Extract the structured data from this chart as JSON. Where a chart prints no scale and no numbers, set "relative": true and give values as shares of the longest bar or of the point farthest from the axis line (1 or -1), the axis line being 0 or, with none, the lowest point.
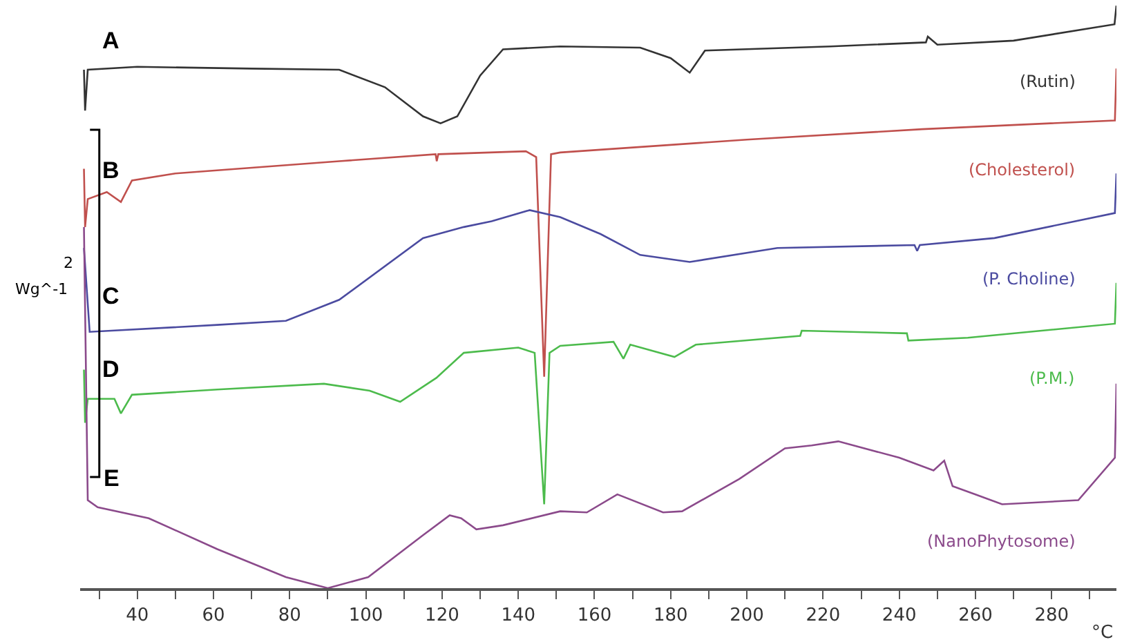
{
  "chart_data": {
    "type": "line",
    "relative": true,
    "xlabel": "°C",
    "xlim": [
      25,
      297
    ],
    "xticks": [
      {
        "value": 30,
        "label": null
      },
      40,
      {
        "value": 50,
        "label": null
      },
      60,
      {
        "value": 70,
        "label": null
      },
      80,
      {
        "value": 90,
        "label": null
      },
      100,
      {
        "value": 110,
        "label": null
      },
      120,
      {
        "value": 130,
        "label": null
      },
      140,
      {
        "value": 150,
        "label": null
      },
      160,
      {
        "value": 170,
        "label": null
      },
      180,
      {
        "value": 190,
        "label": null
      },
      200,
      {
        "value": 210,
        "label": null
      },
      220,
      {
        "value": 230,
        "label": null
      },
      240,
      {
        "value": 250,
        "label": null
      },
      260,
      {
        "value": 270,
        "label": null
      },
      280,
      {
        "value": 290,
        "label": null
      }
    ],
    "legend": false,
    "marker": "none",
    "line_style": "solid",
    "annotations": [
      "A",
      "B",
      "C",
      "D",
      "E",
      "2",
      "Wg^-1"
    ],
    "series": [
      {
        "name": "(Rutin)",
        "color": "#333333",
        "x": [
          26,
          26.3,
          27,
          40,
          70,
          93,
          105,
          115,
          119.6,
          124,
          130,
          136,
          151,
          172,
          180,
          185,
          189,
          222,
          247,
          247.5,
          250,
          270,
          296.5,
          297
        ],
        "values": [
          0.89,
          0.82,
          0.89,
          0.895,
          0.892,
          0.89,
          0.86,
          0.81,
          0.798,
          0.81,
          0.88,
          0.925,
          0.93,
          0.928,
          0.91,
          0.885,
          0.923,
          0.93,
          0.937,
          0.947,
          0.933,
          0.94,
          0.968,
          1.0
        ]
      },
      {
        "name": "(Cholesterol)",
        "color": "#c0504d",
        "x": [
          26,
          26.3,
          27,
          32,
          35.7,
          38.6,
          50,
          93,
          118.3,
          118.6,
          119,
          142,
          144.7,
          146.8,
          148.6,
          151,
          200,
          246,
          296.6,
          297
        ],
        "values": [
          0.72,
          0.62,
          0.668,
          0.68,
          0.663,
          0.7,
          0.712,
          0.733,
          0.745,
          0.733,
          0.745,
          0.75,
          0.74,
          0.363,
          0.745,
          0.748,
          0.77,
          0.788,
          0.803,
          0.892
        ]
      },
      {
        "name": "(P. Choline)",
        "color": "#4b4ba0",
        "x": [
          26,
          27.5,
          61,
          79,
          93,
          115,
          125.7,
          133,
          143,
          151,
          161.6,
          172,
          185,
          208,
          244,
          244.7,
          245.4,
          265,
          296.6,
          297
        ],
        "values": [
          0.584,
          0.44,
          0.452,
          0.459,
          0.495,
          0.601,
          0.62,
          0.63,
          0.649,
          0.637,
          0.608,
          0.572,
          0.56,
          0.584,
          0.589,
          0.579,
          0.589,
          0.601,
          0.644,
          0.712
        ]
      },
      {
        "name": "(P.M.)",
        "color": "#4cbb4c",
        "x": [
          26,
          26.3,
          27,
          34,
          35.7,
          38.6,
          61,
          89,
          101,
          109,
          118.5,
          125.7,
          140,
          144.3,
          146.8,
          148.2,
          151,
          165,
          167.6,
          169.4,
          181,
          186.6,
          214,
          214.4,
          242,
          242.4,
          258,
          296.6,
          297
        ],
        "values": [
          0.375,
          0.284,
          0.325,
          0.325,
          0.3,
          0.332,
          0.341,
          0.351,
          0.339,
          0.32,
          0.361,
          0.404,
          0.413,
          0.404,
          0.144,
          0.404,
          0.416,
          0.423,
          0.394,
          0.418,
          0.397,
          0.418,
          0.433,
          0.442,
          0.4375,
          0.425,
          0.43,
          0.454,
          0.524
        ]
      },
      {
        "name": "(NanoPhytosome)",
        "color": "#8b4a8b",
        "x": [
          26,
          27,
          29.6,
          43,
          61,
          79,
          90,
          100.6,
          115,
          122,
          125,
          129,
          136,
          151,
          158,
          166,
          178,
          183,
          198,
          210,
          217,
          224,
          240,
          249,
          251.8,
          254,
          260,
          267,
          287,
          296.6,
          297
        ],
        "values": [
          0.62,
          0.151,
          0.139,
          0.12,
          0.067,
          0.019,
          0.0,
          0.019,
          0.091,
          0.125,
          0.12,
          0.101,
          0.108,
          0.132,
          0.13,
          0.161,
          0.13,
          0.132,
          0.1875,
          0.24,
          0.245,
          0.252,
          0.224,
          0.202,
          0.219,
          0.175,
          0.161,
          0.144,
          0.151,
          0.224,
          0.351
        ]
      }
    ]
  }
}
